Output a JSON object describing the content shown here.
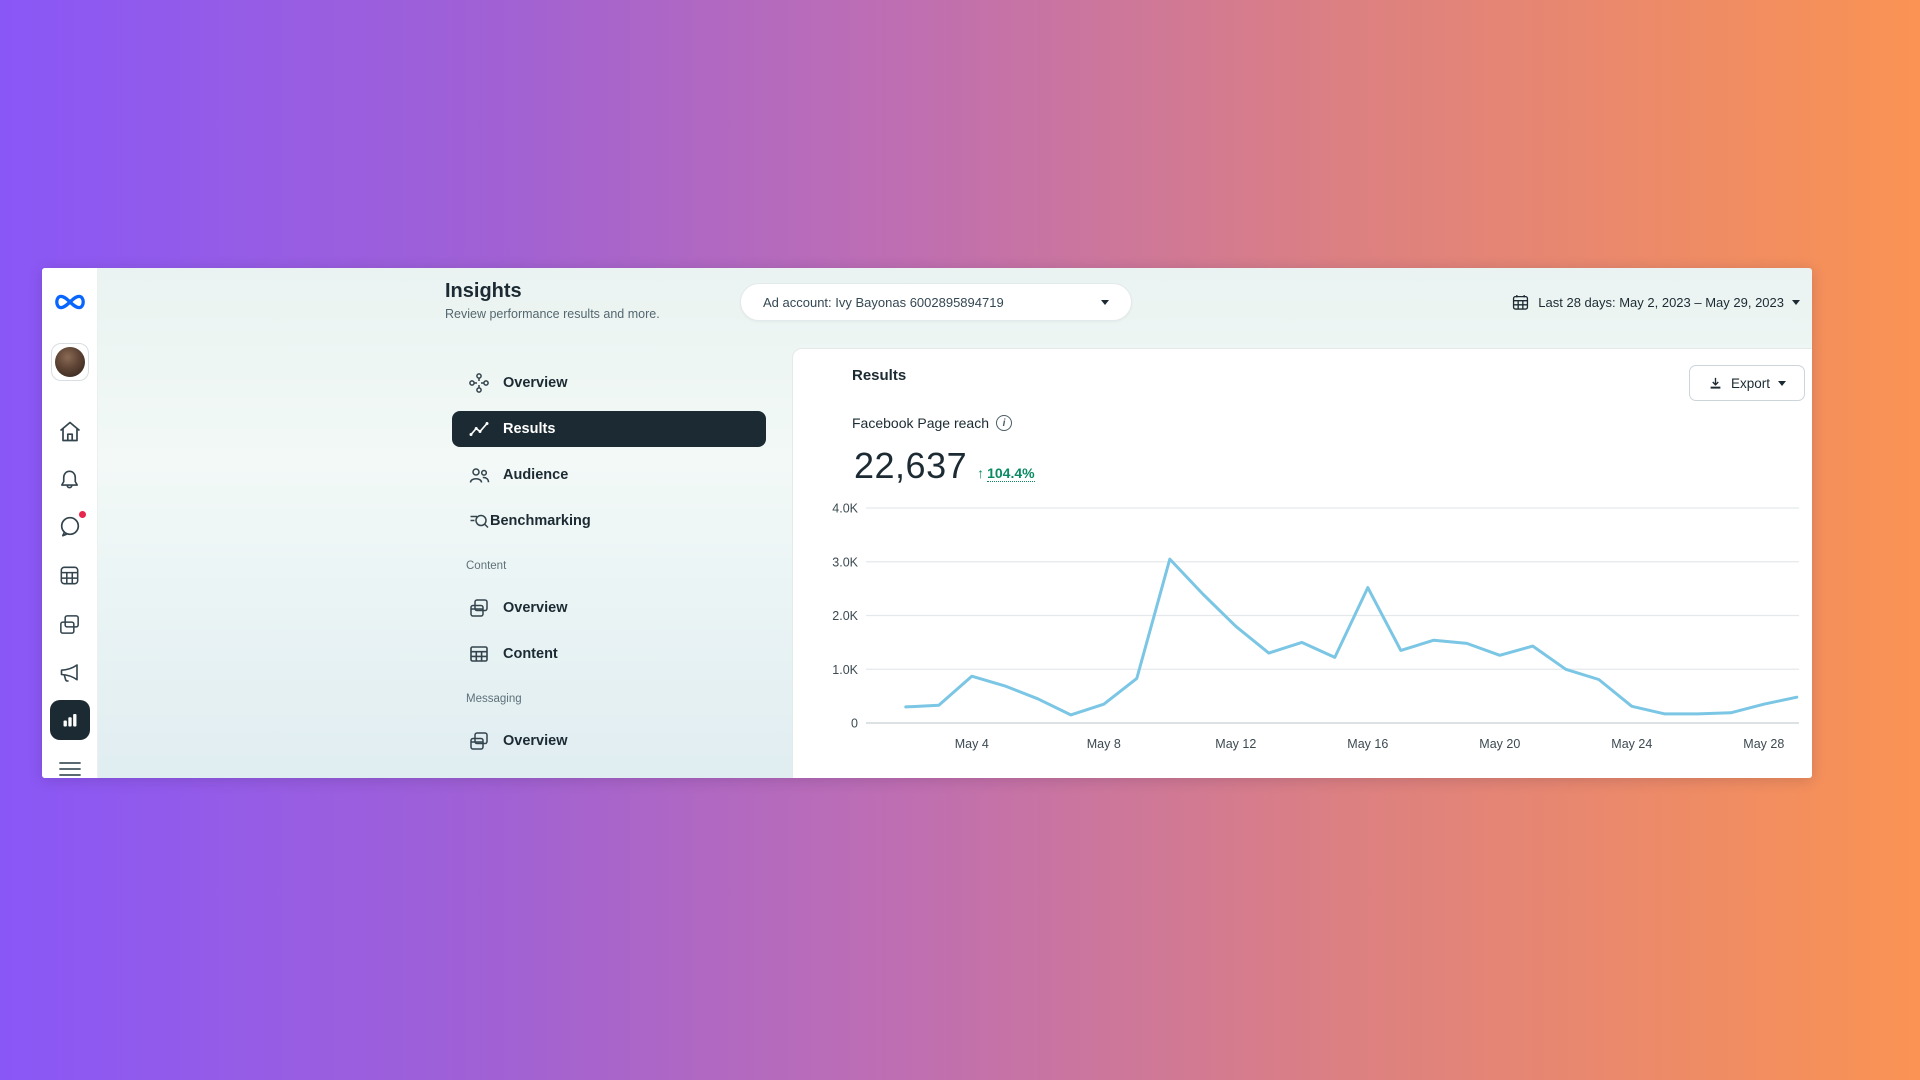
{
  "header": {
    "title": "Insights",
    "subtitle": "Review performance results and more.",
    "account_selector": "Ad account: Ivy Bayonas 6002895894719",
    "date_range": "Last 28 days: May 2, 2023 – May 29, 2023"
  },
  "rail": {
    "icons": [
      "meta-logo",
      "profile-avatar",
      "home",
      "notifications",
      "messages",
      "planner",
      "content",
      "ads",
      "insights-selected",
      "more-menu"
    ]
  },
  "nav": {
    "items": [
      {
        "label": "Overview",
        "selected": false
      },
      {
        "label": "Results",
        "selected": true
      },
      {
        "label": "Audience",
        "selected": false
      },
      {
        "label": "Benchmarking",
        "selected": false
      }
    ],
    "sections": [
      {
        "label": "Content",
        "items": [
          {
            "label": "Overview"
          },
          {
            "label": "Content"
          }
        ]
      },
      {
        "label": "Messaging",
        "items": [
          {
            "label": "Overview"
          }
        ]
      }
    ]
  },
  "results": {
    "title": "Results",
    "export_label": "Export",
    "metric_label": "Facebook Page reach",
    "metric_value": "22,637",
    "metric_change_arrow": "↑",
    "metric_change": "104.4%"
  },
  "chart_data": {
    "type": "line",
    "title": "Facebook Page reach — daily",
    "x": [
      "May 2",
      "May 3",
      "May 4",
      "May 5",
      "May 6",
      "May 7",
      "May 8",
      "May 9",
      "May 10",
      "May 11",
      "May 12",
      "May 13",
      "May 14",
      "May 15",
      "May 16",
      "May 17",
      "May 18",
      "May 19",
      "May 20",
      "May 21",
      "May 22",
      "May 23",
      "May 24",
      "May 25",
      "May 26",
      "May 27",
      "May 28",
      "May 29"
    ],
    "values": [
      300,
      330,
      870,
      690,
      450,
      150,
      350,
      830,
      3050,
      2400,
      1800,
      1300,
      1500,
      1220,
      2520,
      1350,
      1540,
      1480,
      1260,
      1430,
      1000,
      810,
      310,
      170,
      170,
      190,
      350,
      480
    ],
    "xticks": [
      "May 4",
      "May 8",
      "May 12",
      "May 16",
      "May 20",
      "May 24",
      "May 28"
    ],
    "xtick_indices": [
      2,
      6,
      10,
      14,
      18,
      22,
      26
    ],
    "yticks": [
      "0",
      "1.0K",
      "2.0K",
      "3.0K",
      "4.0K"
    ],
    "ytick_values": [
      0,
      1000,
      2000,
      3000,
      4000
    ],
    "ylim": [
      0,
      4000
    ],
    "grid": true,
    "legend": false,
    "line_color": "#7AC6E4",
    "grid_color": "#E5E9EB",
    "baseline_color": "#C6CFD4",
    "tick_text_color": "#3C4A52"
  },
  "colors": {
    "brand_blue": "#0866FF",
    "selected_dark": "#1C2B33",
    "positive_green": "#0A8A63",
    "badge_red": "#E8254C",
    "backdrop_left": "#8A57F7",
    "backdrop_right": "#FA9353"
  }
}
